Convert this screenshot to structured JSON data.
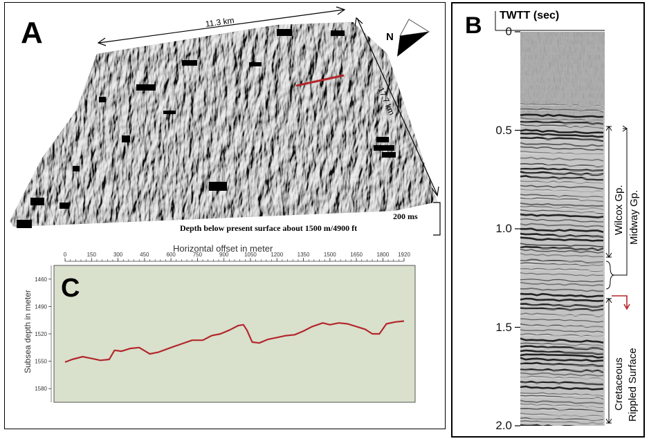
{
  "panel_a": {
    "letter": "A",
    "width_label": "11.3 km",
    "length_label": "17.7 km",
    "north_label": "N",
    "scale_label": "200 ms",
    "depth_caption": "Depth below present surface about 1500 m/4900 ft",
    "colors": {
      "profile_line": "#b3262b",
      "surface_base": "#8a8a8a"
    }
  },
  "panel_b": {
    "letter": "B",
    "axis_title": "TWTT (sec)",
    "ticks": [
      "0",
      "0.5",
      "1.0",
      "1.5",
      "2.0"
    ],
    "tick_values": [
      0,
      0.5,
      1.0,
      1.5,
      2.0
    ],
    "annotations": {
      "wilcox": "Wilcox Gp.",
      "midway": "Midway Gp.",
      "cretaceous": "Cretaceous",
      "rippled": "Rippled Surface"
    },
    "colors": {
      "marker_arrow": "#b3262b"
    }
  },
  "panel_c": {
    "letter": "C",
    "chart_data": {
      "type": "line",
      "title": "Horizontal offset in meter",
      "xlabel": "",
      "ylabel": "Subsea depth in meter",
      "x_ticks": [
        0,
        150,
        300,
        450,
        600,
        750,
        900,
        1050,
        1200,
        1350,
        1500,
        1650,
        1800,
        1920
      ],
      "y_ticks": [
        1460,
        1490,
        1520,
        1550,
        1580
      ],
      "xlim": [
        0,
        1920
      ],
      "ylim": [
        1445,
        1595
      ],
      "y_inverted": true,
      "background": "#d9e0cc",
      "line_color": "#b3262b",
      "series": [
        {
          "x": [
            0,
            40,
            100,
            150,
            200,
            250,
            280,
            320,
            370,
            420,
            480,
            530,
            600,
            660,
            720,
            780,
            830,
            880,
            930,
            980,
            1010,
            1030,
            1060,
            1100,
            1150,
            1200,
            1250,
            1300,
            1350,
            1400,
            1460,
            1500,
            1550,
            1600,
            1650,
            1700,
            1740,
            1780,
            1820,
            1870,
            1920
          ],
          "y": [
            1551,
            1548,
            1545,
            1547,
            1549,
            1548,
            1538,
            1539,
            1536,
            1535,
            1542,
            1540,
            1535,
            1531,
            1527,
            1527,
            1522,
            1520,
            1516,
            1511,
            1510,
            1516,
            1529,
            1530,
            1526,
            1524,
            1522,
            1521,
            1517,
            1512,
            1508,
            1510,
            1508,
            1509,
            1512,
            1515,
            1520,
            1520,
            1509,
            1507,
            1506
          ]
        }
      ]
    }
  }
}
